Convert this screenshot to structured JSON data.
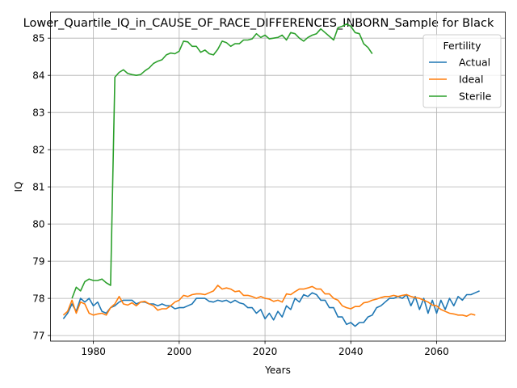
{
  "chart_data": {
    "type": "line",
    "title": "Lower_Quartile_IQ_in_CAUSE_OF_RACE_DIFFERENCES_INBORN_Sample for Black",
    "xlabel": "Years",
    "ylabel": "IQ",
    "xlim": [
      1970,
      2076
    ],
    "ylim": [
      76.85,
      85.7
    ],
    "xticks": [
      1980,
      2000,
      2020,
      2040,
      2060
    ],
    "yticks": [
      77,
      78,
      79,
      80,
      81,
      82,
      83,
      84,
      85
    ],
    "grid": true,
    "legend": {
      "title": "Fertility",
      "placement": "top-right"
    },
    "series": [
      {
        "name": "Actual",
        "color": "#1f77b4",
        "x_start": 1973,
        "values": [
          77.45,
          77.6,
          77.85,
          77.65,
          78.0,
          77.9,
          78.0,
          77.8,
          77.9,
          77.65,
          77.6,
          77.75,
          77.8,
          77.9,
          77.95,
          77.95,
          77.95,
          77.85,
          77.9,
          77.9,
          77.85,
          77.85,
          77.8,
          77.85,
          77.8,
          77.8,
          77.72,
          77.75,
          77.75,
          77.8,
          77.85,
          78.0,
          78.0,
          78.0,
          77.92,
          77.9,
          77.95,
          77.92,
          77.95,
          77.88,
          77.95,
          77.88,
          77.85,
          77.75,
          77.75,
          77.6,
          77.7,
          77.45,
          77.6,
          77.42,
          77.65,
          77.5,
          77.8,
          77.7,
          78.0,
          77.9,
          78.1,
          78.05,
          78.15,
          78.1,
          77.95,
          77.95,
          77.75,
          77.75,
          77.5,
          77.5,
          77.3,
          77.35,
          77.25,
          77.35,
          77.35,
          77.5,
          77.55,
          77.75,
          77.8,
          77.9,
          78.0,
          78.0,
          78.05,
          78.0,
          78.1,
          77.8,
          78.05,
          77.7,
          78.0,
          77.6,
          77.95,
          77.6,
          77.95,
          77.7,
          78.0,
          77.8,
          78.05,
          77.95,
          78.1,
          78.1,
          78.15,
          78.2
        ]
      },
      {
        "name": "Ideal",
        "color": "#ff7f0e",
        "x_start": 1973,
        "values": [
          77.55,
          77.65,
          77.95,
          77.6,
          77.9,
          77.85,
          77.6,
          77.55,
          77.58,
          77.6,
          77.55,
          77.75,
          77.85,
          78.05,
          77.85,
          77.82,
          77.88,
          77.8,
          77.9,
          77.92,
          77.85,
          77.8,
          77.68,
          77.72,
          77.72,
          77.8,
          77.9,
          77.95,
          78.08,
          78.05,
          78.1,
          78.12,
          78.12,
          78.1,
          78.15,
          78.2,
          78.35,
          78.25,
          78.28,
          78.25,
          78.18,
          78.2,
          78.08,
          78.08,
          78.05,
          78.0,
          78.05,
          78.0,
          77.98,
          77.92,
          77.95,
          77.9,
          78.12,
          78.1,
          78.18,
          78.25,
          78.25,
          78.28,
          78.32,
          78.25,
          78.25,
          78.12,
          78.12,
          78.0,
          77.95,
          77.8,
          77.75,
          77.72,
          77.78,
          77.78,
          77.88,
          77.9,
          77.95,
          77.98,
          78.02,
          78.05,
          78.05,
          78.08,
          78.05,
          78.08,
          78.1,
          78.05,
          78.02,
          78.0,
          77.95,
          77.9,
          77.82,
          77.8,
          77.7,
          77.65,
          77.6,
          77.58,
          77.55,
          77.55,
          77.52,
          77.58,
          77.55
        ]
      },
      {
        "name": "Sterile",
        "color": "#2ca02c",
        "x_start": 1975,
        "values": [
          78.0,
          78.3,
          78.2,
          78.45,
          78.52,
          78.48,
          78.48,
          78.52,
          78.42,
          78.35,
          83.95,
          84.08,
          84.15,
          84.05,
          84.02,
          84.0,
          84.02,
          84.12,
          84.2,
          84.32,
          84.38,
          84.42,
          84.55,
          84.6,
          84.58,
          84.65,
          84.92,
          84.9,
          84.78,
          84.78,
          84.62,
          84.68,
          84.58,
          84.55,
          84.7,
          84.92,
          84.88,
          84.78,
          84.85,
          84.85,
          84.95,
          84.95,
          84.98,
          85.12,
          85.02,
          85.08,
          84.98,
          85.0,
          85.02,
          85.08,
          84.95,
          85.15,
          85.12,
          85.0,
          84.92,
          85.02,
          85.08,
          85.12,
          85.25,
          85.15,
          85.05,
          84.95,
          85.28,
          85.32,
          85.38,
          85.32,
          85.15,
          85.12,
          84.85,
          84.75,
          84.58
        ]
      }
    ]
  }
}
